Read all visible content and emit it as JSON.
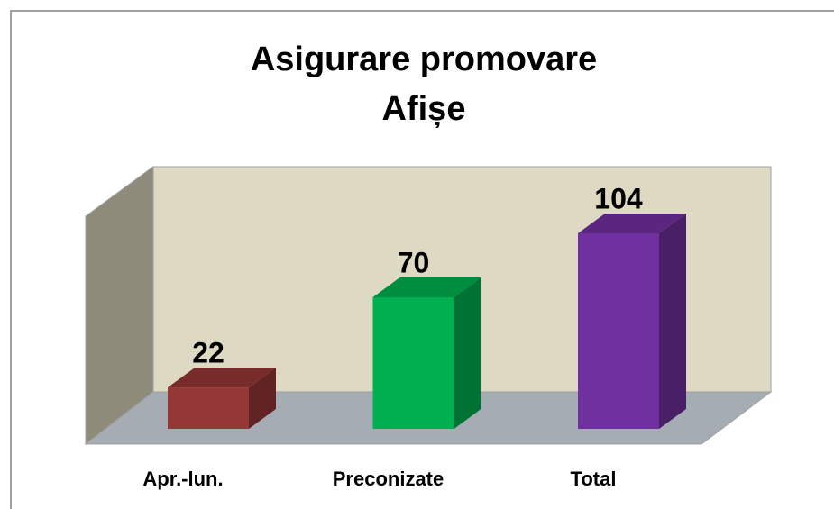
{
  "chart_data": {
    "type": "bar3d",
    "title": [
      "Asigurare promovare",
      "Afișe"
    ],
    "categories": [
      "Apr.-lun.",
      "Preconizate",
      "Total"
    ],
    "values": [
      22,
      70,
      104
    ],
    "colors": [
      "#953735",
      "#00b050",
      "#7030a0"
    ]
  }
}
